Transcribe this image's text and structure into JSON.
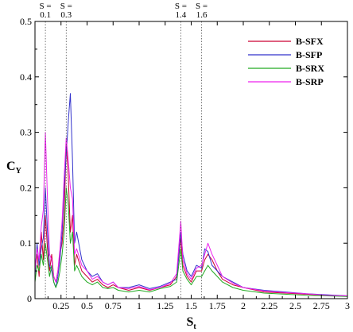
{
  "chart_data": {
    "type": "line",
    "title": "",
    "xlabel": {
      "main": "S",
      "sub": "t"
    },
    "ylabel": {
      "main": "C",
      "sub": "Y"
    },
    "xlim": [
      0,
      3
    ],
    "ylim": [
      0,
      0.5
    ],
    "grid": false,
    "legend_position": "top-right",
    "x_ticks": [
      {
        "value": 0.25,
        "label": "0.25"
      },
      {
        "value": 0.5,
        "label": "0.5"
      },
      {
        "value": 0.75,
        "label": "0.75"
      },
      {
        "value": 1,
        "label": "1"
      },
      {
        "value": 1.25,
        "label": "1.25"
      },
      {
        "value": 1.5,
        "label": "1.5"
      },
      {
        "value": 1.75,
        "label": "1.75"
      },
      {
        "value": 2,
        "label": "2"
      },
      {
        "value": 2.25,
        "label": "2.25"
      },
      {
        "value": 2.5,
        "label": "2.5"
      },
      {
        "value": 2.75,
        "label": "2.75"
      },
      {
        "value": 3,
        "label": "3"
      }
    ],
    "y_ticks": [
      {
        "value": 0,
        "label": "0"
      },
      {
        "value": 0.1,
        "label": "0.1"
      },
      {
        "value": 0.2,
        "label": "0.2"
      },
      {
        "value": 0.3,
        "label": "0.3"
      },
      {
        "value": 0.4,
        "label": "0.4"
      },
      {
        "value": 0.5,
        "label": "0.5"
      }
    ],
    "reference_lines": [
      {
        "x": 0.1,
        "top": "S =",
        "bottom": "0.1"
      },
      {
        "x": 0.3,
        "top": "S =",
        "bottom": "0.3"
      },
      {
        "x": 1.4,
        "top": "S =",
        "bottom": "1.4"
      },
      {
        "x": 1.6,
        "top": "S =",
        "bottom": "1.6"
      }
    ],
    "series": [
      {
        "name": "B-SFX",
        "color": "#cc0033",
        "x": [
          0,
          0.02,
          0.04,
          0.06,
          0.08,
          0.1,
          0.12,
          0.14,
          0.16,
          0.18,
          0.2,
          0.22,
          0.24,
          0.26,
          0.28,
          0.3,
          0.32,
          0.34,
          0.36,
          0.38,
          0.4,
          0.45,
          0.5,
          0.55,
          0.6,
          0.65,
          0.7,
          0.75,
          0.8,
          0.9,
          1.0,
          1.1,
          1.2,
          1.3,
          1.36,
          1.4,
          1.42,
          1.46,
          1.5,
          1.55,
          1.6,
          1.63,
          1.66,
          1.7,
          1.75,
          1.8,
          1.9,
          2.0,
          2.2,
          2.4,
          2.6,
          2.8,
          3.0
        ],
        "values": [
          0.05,
          0.08,
          0.04,
          0.12,
          0.07,
          0.15,
          0.09,
          0.05,
          0.08,
          0.04,
          0.03,
          0.05,
          0.08,
          0.1,
          0.15,
          0.28,
          0.22,
          0.12,
          0.15,
          0.06,
          0.08,
          0.05,
          0.04,
          0.03,
          0.035,
          0.025,
          0.02,
          0.025,
          0.02,
          0.015,
          0.02,
          0.015,
          0.02,
          0.025,
          0.04,
          0.11,
          0.06,
          0.04,
          0.03,
          0.05,
          0.05,
          0.07,
          0.08,
          0.07,
          0.05,
          0.035,
          0.025,
          0.02,
          0.012,
          0.01,
          0.008,
          0.006,
          0.005
        ]
      },
      {
        "name": "B-SFP",
        "color": "#3333cc",
        "x": [
          0,
          0.02,
          0.04,
          0.06,
          0.08,
          0.1,
          0.12,
          0.14,
          0.16,
          0.18,
          0.2,
          0.22,
          0.24,
          0.26,
          0.28,
          0.3,
          0.32,
          0.34,
          0.36,
          0.38,
          0.4,
          0.45,
          0.5,
          0.55,
          0.6,
          0.65,
          0.7,
          0.75,
          0.8,
          0.9,
          1.0,
          1.1,
          1.2,
          1.3,
          1.36,
          1.4,
          1.42,
          1.46,
          1.5,
          1.55,
          1.6,
          1.63,
          1.66,
          1.7,
          1.75,
          1.8,
          1.9,
          2.0,
          2.2,
          2.4,
          2.6,
          2.8,
          3.0
        ],
        "values": [
          0.04,
          0.1,
          0.06,
          0.09,
          0.11,
          0.2,
          0.12,
          0.06,
          0.05,
          0.03,
          0.02,
          0.04,
          0.07,
          0.12,
          0.2,
          0.26,
          0.32,
          0.37,
          0.25,
          0.1,
          0.12,
          0.07,
          0.05,
          0.04,
          0.045,
          0.03,
          0.025,
          0.03,
          0.02,
          0.02,
          0.025,
          0.018,
          0.022,
          0.03,
          0.035,
          0.12,
          0.08,
          0.05,
          0.04,
          0.06,
          0.055,
          0.09,
          0.085,
          0.06,
          0.05,
          0.04,
          0.03,
          0.02,
          0.015,
          0.012,
          0.009,
          0.007,
          0.005
        ]
      },
      {
        "name": "B-SRX",
        "color": "#22aa22",
        "x": [
          0,
          0.02,
          0.04,
          0.06,
          0.08,
          0.1,
          0.12,
          0.14,
          0.16,
          0.18,
          0.2,
          0.22,
          0.24,
          0.26,
          0.28,
          0.3,
          0.32,
          0.34,
          0.36,
          0.38,
          0.4,
          0.45,
          0.5,
          0.55,
          0.6,
          0.65,
          0.7,
          0.75,
          0.8,
          0.9,
          1.0,
          1.1,
          1.2,
          1.3,
          1.36,
          1.4,
          1.42,
          1.46,
          1.5,
          1.55,
          1.6,
          1.63,
          1.66,
          1.7,
          1.75,
          1.8,
          1.9,
          2.0,
          2.2,
          2.4,
          2.6,
          2.8,
          3.0
        ],
        "values": [
          0.03,
          0.06,
          0.05,
          0.08,
          0.06,
          0.1,
          0.07,
          0.04,
          0.06,
          0.03,
          0.02,
          0.03,
          0.05,
          0.08,
          0.12,
          0.2,
          0.17,
          0.1,
          0.12,
          0.05,
          0.06,
          0.04,
          0.03,
          0.025,
          0.03,
          0.02,
          0.018,
          0.02,
          0.015,
          0.012,
          0.015,
          0.012,
          0.018,
          0.022,
          0.03,
          0.09,
          0.05,
          0.035,
          0.025,
          0.04,
          0.04,
          0.05,
          0.06,
          0.05,
          0.04,
          0.03,
          0.02,
          0.015,
          0.01,
          0.008,
          0.006,
          0.005,
          0.004
        ]
      },
      {
        "name": "B-SRP",
        "color": "#ee22ee",
        "x": [
          0,
          0.02,
          0.04,
          0.06,
          0.08,
          0.1,
          0.12,
          0.14,
          0.16,
          0.18,
          0.2,
          0.22,
          0.24,
          0.26,
          0.28,
          0.3,
          0.32,
          0.34,
          0.36,
          0.38,
          0.4,
          0.45,
          0.5,
          0.55,
          0.6,
          0.65,
          0.7,
          0.75,
          0.8,
          0.9,
          1.0,
          1.1,
          1.2,
          1.3,
          1.36,
          1.4,
          1.42,
          1.46,
          1.5,
          1.55,
          1.6,
          1.63,
          1.66,
          1.7,
          1.75,
          1.8,
          1.9,
          2.0,
          2.2,
          2.4,
          2.6,
          2.8,
          3.0
        ],
        "values": [
          0.05,
          0.09,
          0.07,
          0.13,
          0.16,
          0.3,
          0.18,
          0.08,
          0.07,
          0.04,
          0.03,
          0.05,
          0.09,
          0.14,
          0.22,
          0.29,
          0.25,
          0.2,
          0.18,
          0.08,
          0.09,
          0.06,
          0.05,
          0.035,
          0.04,
          0.03,
          0.025,
          0.03,
          0.02,
          0.018,
          0.022,
          0.016,
          0.02,
          0.028,
          0.045,
          0.14,
          0.07,
          0.045,
          0.035,
          0.055,
          0.06,
          0.08,
          0.1,
          0.08,
          0.06,
          0.04,
          0.028,
          0.02,
          0.014,
          0.011,
          0.009,
          0.006,
          0.005
        ]
      }
    ]
  }
}
